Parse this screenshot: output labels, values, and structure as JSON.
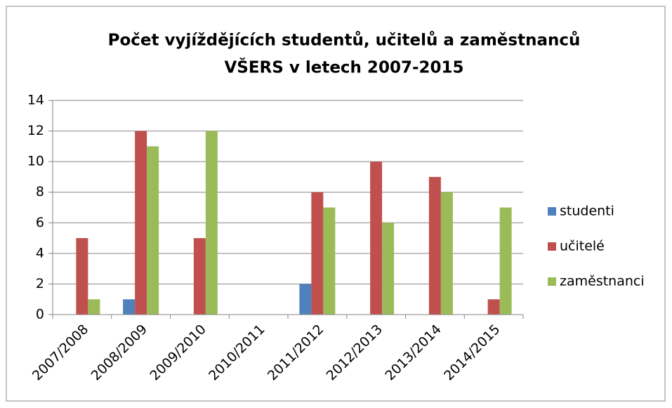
{
  "chart_data": {
    "type": "bar",
    "title": [
      "Počet vyjíždějících studentů, učitelů a zaměstnanců",
      "VŠERS v letech 2007-2015"
    ],
    "categories": [
      "2007/2008",
      "2008/2009",
      "2009/2010",
      "2010/2011",
      "2011/2012",
      "2012/2013",
      "2013/2014",
      "2014/2015"
    ],
    "series": [
      {
        "name": "studenti",
        "color": "#4f81bd",
        "values": [
          0,
          1,
          0,
          0,
          2,
          0,
          0,
          0
        ]
      },
      {
        "name": "učitelé",
        "color": "#c0504d",
        "values": [
          5,
          12,
          5,
          0,
          8,
          10,
          9,
          1
        ]
      },
      {
        "name": "zaměstnanci",
        "color": "#9bbb59",
        "values": [
          1,
          11,
          12,
          0,
          7,
          6,
          8,
          7
        ]
      }
    ],
    "ylim": [
      0,
      14
    ],
    "yticks": [
      0,
      2,
      4,
      6,
      8,
      10,
      12,
      14
    ],
    "grid": true,
    "legend": "right"
  }
}
